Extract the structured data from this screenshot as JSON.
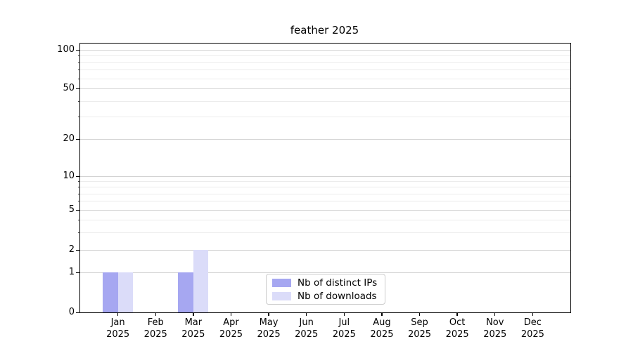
{
  "chart_data": {
    "type": "bar",
    "title": "feather 2025",
    "categories": [
      "Jan",
      "Feb",
      "Mar",
      "Apr",
      "May",
      "Jun",
      "Jul",
      "Aug",
      "Sep",
      "Oct",
      "Nov",
      "Dec"
    ],
    "year_label": "2025",
    "series": [
      {
        "name": "Nb of distinct IPs",
        "color": "#a6a7f1",
        "values": [
          1,
          0,
          1,
          0,
          0,
          0,
          0,
          0,
          0,
          0,
          0,
          0
        ]
      },
      {
        "name": "Nb of downloads",
        "color": "#dbdcf9",
        "values": [
          1,
          0,
          2,
          0,
          0,
          0,
          0,
          0,
          0,
          0,
          0,
          0
        ]
      }
    ],
    "yscale": "symlog",
    "ylim": [
      0,
      112
    ],
    "y_major_ticks": [
      0,
      1,
      2,
      5,
      10,
      20,
      50,
      100
    ],
    "y_minor_ticks": [
      3,
      4,
      6,
      7,
      8,
      9,
      30,
      40,
      60,
      70,
      80,
      90
    ],
    "grid": true,
    "legend_position": "lower center"
  },
  "colors": {
    "background": "#ffffff",
    "axis": "#000000",
    "major_grid": "#d2d2d2",
    "minor_grid": "#ececec",
    "legend_border": "#cccccc"
  }
}
